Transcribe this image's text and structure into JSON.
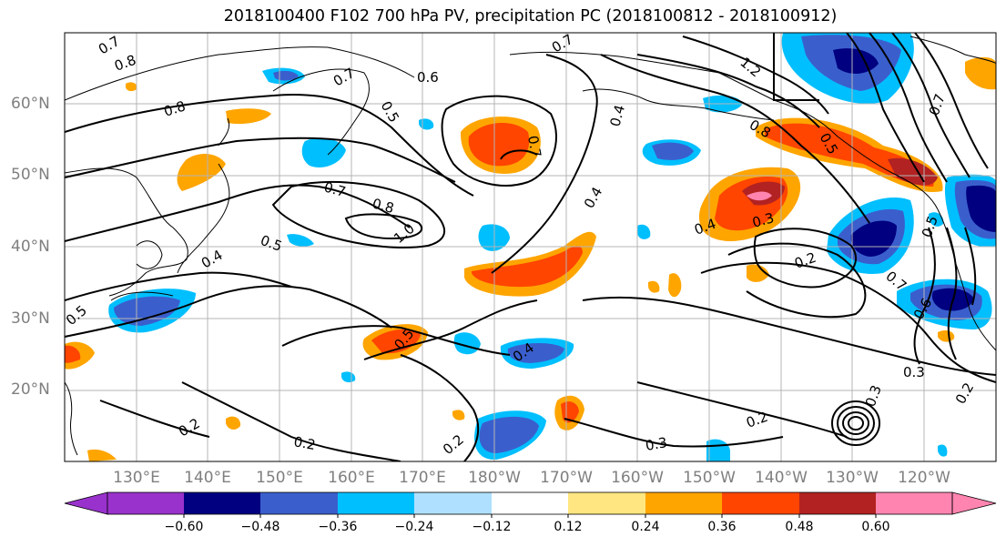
{
  "title": "2018100400 F102 700 hPa PV, precipitation PC (2018100812 - 2018100912)",
  "map": {
    "lat_labels": [
      "60°N",
      "50°N",
      "40°N",
      "30°N",
      "20°N"
    ],
    "lon_labels": [
      "130°E",
      "140°E",
      "150°E",
      "160°E",
      "170°E",
      "180°W",
      "170°W",
      "160°W",
      "150°W",
      "140°W",
      "130°W",
      "120°W"
    ],
    "contour_labels": [
      "0.7",
      "0.8",
      "0.8",
      "0.7",
      "0.6",
      "0.7",
      "0.5",
      "0.7",
      "1.2",
      "0.8",
      "0.4",
      "0.5",
      "0.7",
      "0.8",
      "0.5",
      "1.0",
      "0.4",
      "0.4",
      "0.4",
      "0.3",
      "0.2",
      "0.7",
      "0.5",
      "0.5",
      "0.6",
      "0.4",
      "0.5",
      "0.3",
      "0.2",
      "0.2",
      "0.2",
      "0.3",
      "0.2",
      "0.3",
      "0.2",
      "0.7"
    ],
    "fill_colors": {
      "strong_positive": "#b22222",
      "positive": "#ff4500",
      "moderate_positive": "#ffa500",
      "weak_positive": "#ffe680",
      "max_positive": "#ff85b0",
      "strong_negative": "#000080",
      "negative": "#3a5fcd",
      "moderate_negative": "#00bfff",
      "weak_negative": "#b0e0ff",
      "min_negative": "#9932cc"
    }
  },
  "colorbar": {
    "ticks": [
      "−0.60",
      "−0.48",
      "−0.36",
      "−0.24",
      "−0.12",
      "0.12",
      "0.24",
      "0.36",
      "0.48",
      "0.60"
    ],
    "colors": [
      "#9932cc",
      "#000080",
      "#3a5fcd",
      "#00bfff",
      "#b0e0ff",
      "#ffffff",
      "#ffe680",
      "#ffa500",
      "#ff4500",
      "#b22222",
      "#ff85b0"
    ]
  }
}
